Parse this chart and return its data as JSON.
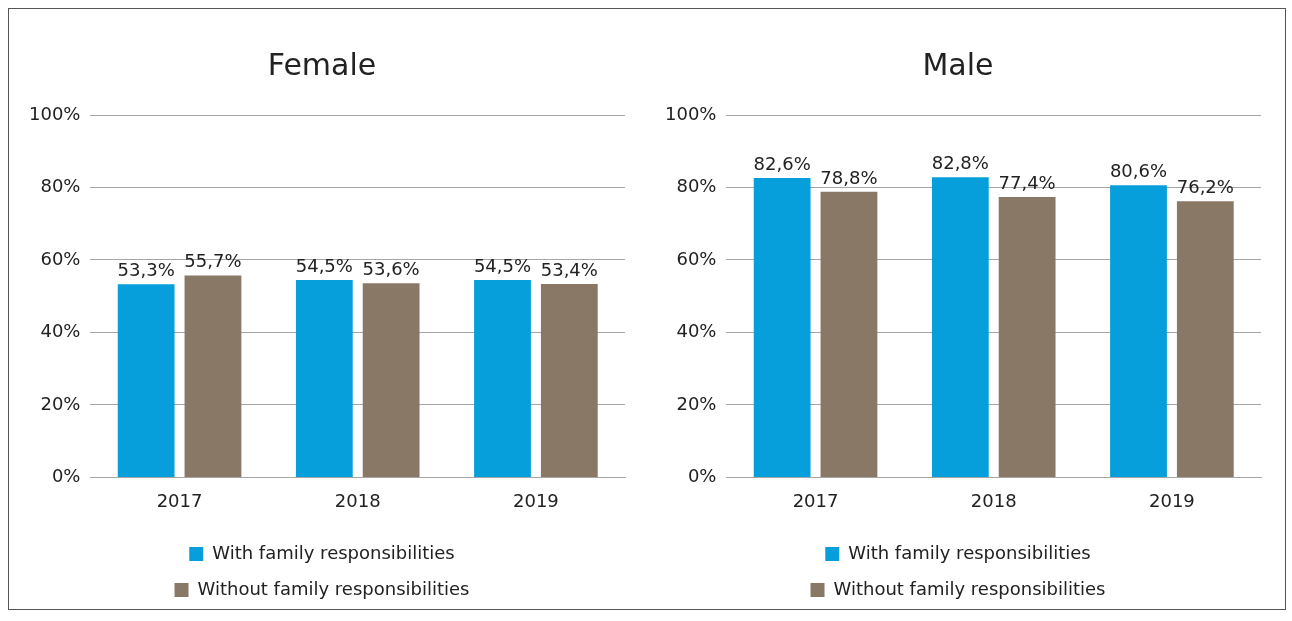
{
  "chart_data": [
    {
      "type": "bar",
      "title": "Female",
      "categories": [
        "2017",
        "2018",
        "2019"
      ],
      "series": [
        {
          "name": "With family responsibilities",
          "color": "#069fdb",
          "values": [
            53.3,
            54.5,
            54.5
          ],
          "value_labels": [
            "53,3%",
            "54,5%",
            "54,5%"
          ]
        },
        {
          "name": "Without family responsibilities",
          "color": "#8a7867",
          "values": [
            55.7,
            53.6,
            53.4
          ],
          "value_labels": [
            "55,7%",
            "53,6%",
            "53,4%"
          ]
        }
      ],
      "ylim": [
        0,
        100
      ],
      "yticks": [
        {
          "value": 0,
          "label": "0%"
        },
        {
          "value": 20,
          "label": "20%"
        },
        {
          "value": 40,
          "label": "40%"
        },
        {
          "value": 60,
          "label": "60%"
        },
        {
          "value": 80,
          "label": "80%"
        },
        {
          "value": 100,
          "label": "100%"
        }
      ],
      "grid": "y",
      "legend": "bottom"
    },
    {
      "type": "bar",
      "title": "Male",
      "categories": [
        "2017",
        "2018",
        "2019"
      ],
      "series": [
        {
          "name": "With family responsibilities",
          "color": "#069fdb",
          "values": [
            82.6,
            82.8,
            80.6
          ],
          "value_labels": [
            "82,6%",
            "82,8%",
            "80,6%"
          ]
        },
        {
          "name": "Without family responsibilities",
          "color": "#8a7867",
          "values": [
            78.8,
            77.4,
            76.2
          ],
          "value_labels": [
            "78,8%",
            "77,4%",
            "76,2%"
          ]
        }
      ],
      "ylim": [
        0,
        100
      ],
      "yticks": [
        {
          "value": 0,
          "label": "0%"
        },
        {
          "value": 20,
          "label": "20%"
        },
        {
          "value": 40,
          "label": "40%"
        },
        {
          "value": 60,
          "label": "60%"
        },
        {
          "value": 80,
          "label": "80%"
        },
        {
          "value": 100,
          "label": "100%"
        }
      ],
      "grid": "y",
      "legend": "bottom"
    }
  ]
}
